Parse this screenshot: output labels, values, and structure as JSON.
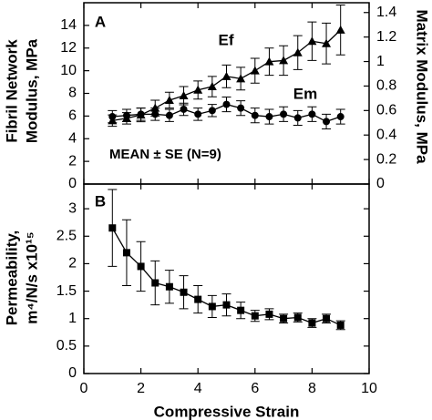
{
  "chart_data": [
    {
      "type": "line",
      "panel_label": "A",
      "ylabel": [
        "Fibril Network",
        "Modulus, MPa"
      ],
      "y2label": "Matrix Modulus, MPa",
      "annotations": [
        "MEAN ± SE (N=9)"
      ],
      "xlim": [
        0,
        10
      ],
      "ylim": [
        0,
        16
      ],
      "yticks": [
        0,
        2,
        4,
        6,
        8,
        10,
        12,
        14
      ],
      "y2lim": [
        0,
        1.48
      ],
      "y2ticks": [
        0,
        0.2,
        0.4,
        0.6,
        0.8,
        1,
        1.2,
        1.4
      ],
      "x": [
        1,
        1.5,
        2,
        2.5,
        3,
        3.5,
        4,
        4.5,
        5,
        5.5,
        6,
        6.5,
        7,
        7.5,
        8,
        8.5,
        9
      ],
      "series": [
        {
          "name": "Ef",
          "color": "#000000",
          "marker": "triangle",
          "values": [
            5.6,
            5.8,
            6.1,
            6.7,
            7.4,
            7.8,
            8.3,
            8.6,
            9.5,
            9.3,
            10.0,
            10.8,
            10.9,
            11.6,
            12.6,
            12.4,
            13.6
          ],
          "errors": [
            0.5,
            0.5,
            0.6,
            0.7,
            0.7,
            0.8,
            0.8,
            0.9,
            1.0,
            1.0,
            1.1,
            1.2,
            1.3,
            1.5,
            1.7,
            1.8,
            2.2
          ]
        },
        {
          "name": "Em",
          "color": "#000000",
          "marker": "circle",
          "axis": "y2",
          "values": [
            0.55,
            0.56,
            0.57,
            0.57,
            0.56,
            0.61,
            0.57,
            0.6,
            0.65,
            0.62,
            0.56,
            0.55,
            0.57,
            0.54,
            0.57,
            0.51,
            0.55
          ],
          "errors": [
            0.05,
            0.05,
            0.05,
            0.05,
            0.05,
            0.05,
            0.05,
            0.05,
            0.06,
            0.06,
            0.06,
            0.06,
            0.06,
            0.06,
            0.06,
            0.06,
            0.06
          ]
        }
      ]
    },
    {
      "type": "line",
      "panel_label": "B",
      "ylabel": [
        "Permeability,",
        "m⁴/N/s x10¹⁵"
      ],
      "xlabel": "Compressive Strain",
      "xlim": [
        0,
        10
      ],
      "xticks": [
        0,
        2,
        4,
        6,
        8,
        10
      ],
      "ylim": [
        0,
        3.45
      ],
      "yticks": [
        0,
        0.5,
        1,
        1.5,
        2,
        2.5,
        3
      ],
      "x": [
        1,
        1.5,
        2,
        2.5,
        3,
        3.5,
        4,
        4.5,
        5,
        5.5,
        6,
        6.5,
        7,
        7.5,
        8,
        8.5,
        9
      ],
      "series": [
        {
          "color": "#000000",
          "marker": "square",
          "values": [
            2.65,
            2.2,
            1.95,
            1.65,
            1.58,
            1.48,
            1.35,
            1.22,
            1.25,
            1.15,
            1.05,
            1.08,
            1.0,
            1.02,
            0.92,
            1.0,
            0.88
          ],
          "errors": [
            0.7,
            0.6,
            0.45,
            0.4,
            0.3,
            0.3,
            0.25,
            0.2,
            0.2,
            0.15,
            0.1,
            0.1,
            0.08,
            0.08,
            0.08,
            0.08,
            0.08
          ]
        }
      ]
    }
  ]
}
